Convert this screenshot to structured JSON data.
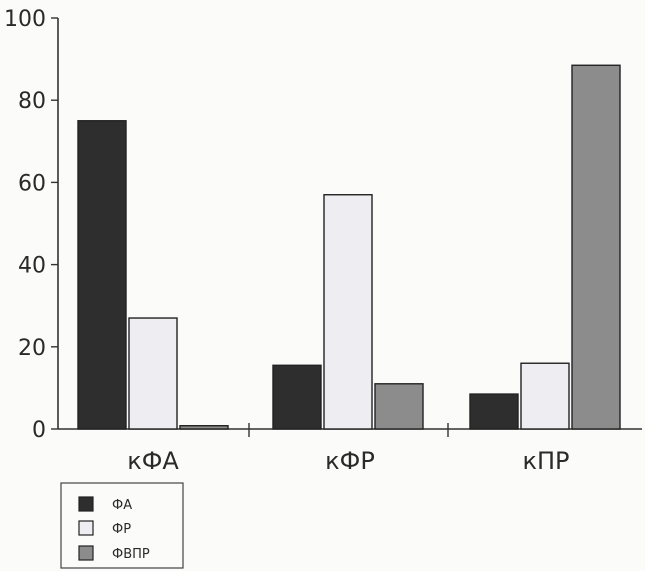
{
  "chart_data": {
    "type": "bar",
    "categories": [
      "кФА",
      "кФР",
      "кПР"
    ],
    "series": [
      {
        "name": "ФА",
        "values": [
          75,
          15.5,
          8.5
        ],
        "color": "#2e2e2e"
      },
      {
        "name": "ФР",
        "values": [
          27,
          57,
          16
        ],
        "color": "#eeeef2"
      },
      {
        "name": "ФВПР",
        "values": [
          0.8,
          11,
          88.5
        ],
        "color": "#8c8c8c"
      }
    ],
    "yticks": [
      "0",
      "20",
      "40",
      "60",
      "80",
      "100"
    ],
    "ylim": [
      0,
      100
    ],
    "grid": false,
    "legend_position": "bottom-left"
  }
}
